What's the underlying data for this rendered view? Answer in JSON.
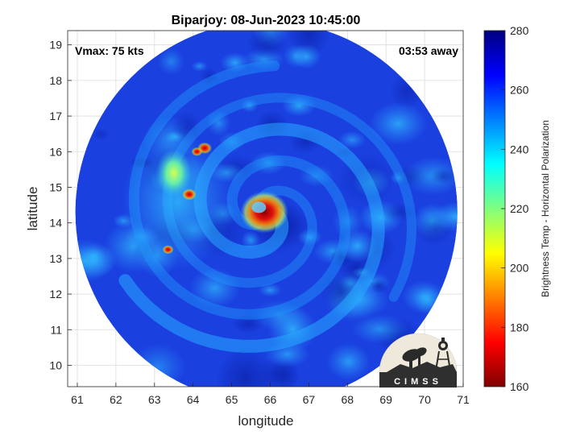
{
  "chart_data": {
    "type": "heatmap",
    "title": "Biparjoy: 08-Jun-2023 10:45:00",
    "xlabel": "longitude",
    "ylabel": "latitude",
    "xlim": [
      60.75,
      71.0
    ],
    "ylim": [
      9.4,
      19.4
    ],
    "xticks": [
      61,
      62,
      63,
      64,
      65,
      66,
      67,
      68,
      69,
      70,
      71
    ],
    "yticks": [
      10,
      11,
      12,
      13,
      14,
      15,
      16,
      17,
      18,
      19
    ],
    "grid": true,
    "annotations": [
      {
        "text": "Vmax: 75 kts",
        "position": "top-left"
      },
      {
        "text": "03:53 away",
        "position": "top-right"
      }
    ],
    "swath": {
      "center_lon": 65.9,
      "center_lat": 14.3,
      "radius_deg": 5.15
    },
    "storm_center": {
      "lon": 65.85,
      "lat": 14.25
    },
    "colorbar": {
      "label": "Brightness Temp - Horizontal Polarization",
      "range": [
        160,
        280
      ],
      "ticks": [
        160,
        180,
        200,
        220,
        240,
        260,
        280
      ],
      "colormap": "jet"
    },
    "features": [
      {
        "label": "eyewall convection",
        "lon": 65.85,
        "lat": 14.3,
        "min_tb": 165
      },
      {
        "label": "convective cell",
        "lon": 64.3,
        "lat": 16.1,
        "min_tb": 175
      },
      {
        "label": "convective cell",
        "lon": 64.1,
        "lat": 16.0,
        "min_tb": 180
      },
      {
        "label": "convective cell",
        "lon": 63.9,
        "lat": 14.8,
        "min_tb": 175
      },
      {
        "label": "convective cell",
        "lon": 63.35,
        "lat": 13.25,
        "min_tb": 180
      },
      {
        "label": "rainband",
        "lon": 63.5,
        "lat": 15.4,
        "min_tb": 215
      }
    ]
  },
  "logo": {
    "text": "CIMSS"
  },
  "colors": {
    "background_tb": "#1a40e0",
    "axis": "#262626",
    "grid": "#dcdcdc"
  }
}
